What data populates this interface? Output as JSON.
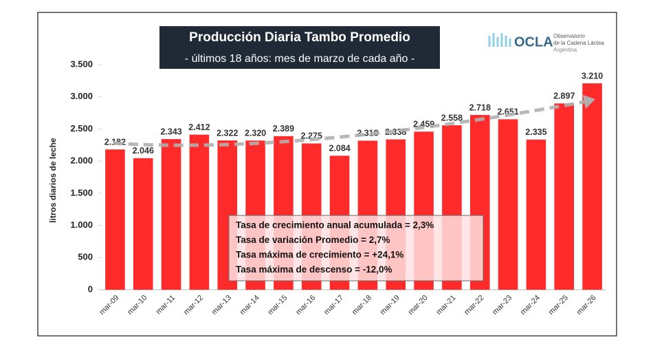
{
  "chart_data": {
    "type": "bar",
    "title": "Producción Diaria Tambo Promedio",
    "subtitle": "- últimos 18 años: mes de marzo de cada año -",
    "y_label": "litros diarios de leche",
    "categories": [
      "mar-09",
      "mar-10",
      "mar-11",
      "mar-12",
      "mar-13",
      "mar-14",
      "mar-15",
      "mar-16",
      "mar-17",
      "mar-18",
      "mar-19",
      "mar-20",
      "mar-21",
      "mar-22",
      "mar-23",
      "mar-24",
      "mar-25",
      "mar-26"
    ],
    "values": [
      2182,
      2046,
      2343,
      2412,
      2322,
      2320,
      2389,
      2275,
      2084,
      2318,
      2338,
      2459,
      2558,
      2718,
      2651,
      2335,
      2897,
      3210
    ],
    "value_labels": [
      "2.182",
      "2.046",
      "2.343",
      "2.412",
      "2.322",
      "2.320",
      "2.389",
      "2.275",
      "2.084",
      "2.318",
      "2.338",
      "2.459",
      "2.558",
      "2.718",
      "2.651",
      "2.335",
      "2.897",
      "3.210"
    ],
    "color": "#ff2b2b",
    "ylim": [
      0,
      3500
    ],
    "yticks": [
      0,
      {
        "value": 500,
        "label": "500"
      },
      {
        "value": 1000,
        "label": "1.000"
      },
      {
        "value": 1500,
        "label": "1.500"
      },
      {
        "value": 2000,
        "label": "2.000"
      },
      {
        "value": 2500,
        "label": "2.500"
      },
      {
        "value": 3000,
        "label": "3.000"
      },
      {
        "value": 3500,
        "label": "3.500"
      }
    ],
    "grid": false,
    "annotations": [
      "Tasa de crecimiento anual acumulada = 2,3%",
      "Tasa de variación Promedio = 2,7%",
      "Tasa máxima de crecimiento = +24,1%",
      "Tasa máxima de descenso = -12,0%"
    ]
  },
  "logo": {
    "name": "OCLA",
    "lines": [
      "Observatorio",
      "de la Cadena Láctea",
      "Argentina"
    ]
  }
}
